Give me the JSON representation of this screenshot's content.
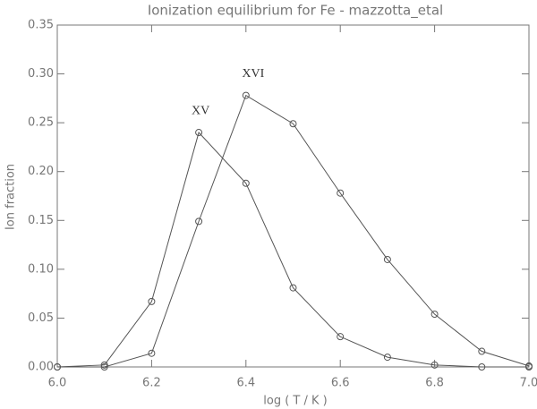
{
  "chart_data": {
    "type": "line",
    "title": "Ionization equilibrium for Fe -  mazzotta_etal",
    "x_label": "log ( T / K )",
    "y_label": "Ion fraction",
    "x": [
      6.0,
      6.1,
      6.2,
      6.3,
      6.4,
      6.5,
      6.6,
      6.7,
      6.8,
      6.9,
      7.0
    ],
    "series": [
      {
        "name": "XV",
        "color": "#555555",
        "values": [
          0,
          0.002,
          0.067,
          0.24,
          0.188,
          0.081,
          0.031,
          0.01,
          0.002,
          0.0,
          0
        ]
      },
      {
        "name": "XVI",
        "color": "#555555",
        "values": [
          0,
          0.0,
          0.014,
          0.149,
          0.278,
          0.249,
          0.178,
          0.11,
          0.054,
          0.016,
          0.001
        ]
      }
    ],
    "xlim": [
      6.0,
      7.0
    ],
    "xticks": [
      {
        "value": 6.0,
        "label": "6.0"
      },
      6.2,
      6.4,
      6.6,
      6.8,
      {
        "value": 7.0,
        "label": "7.0"
      }
    ],
    "ylim": [
      0,
      0.35
    ],
    "yticks": [
      {
        "value": 0,
        "label": "0.00"
      },
      {
        "value": 0.05,
        "label": "0.05"
      },
      {
        "value": 0.1,
        "label": "0.10"
      },
      {
        "value": 0.15,
        "label": "0.15"
      },
      {
        "value": 0.2,
        "label": "0.20"
      },
      {
        "value": 0.25,
        "label": "0.25"
      },
      {
        "value": 0.3,
        "label": "0.30"
      },
      {
        "value": 0.35,
        "label": "0.35"
      }
    ]
  }
}
